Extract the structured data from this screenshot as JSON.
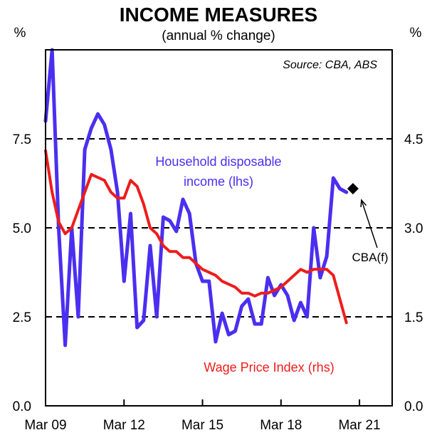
{
  "chart_data": {
    "type": "line",
    "title": "INCOME MEASURES",
    "subtitle": "(annual % change)",
    "source": "Source: CBA, ABS",
    "left_axis": {
      "unit_label": "%",
      "ylim": [
        0,
        10
      ],
      "ticks": [
        "0.0",
        "2.5",
        "5.0",
        "7.5"
      ],
      "tick_values": [
        0,
        2.5,
        5,
        7.5
      ]
    },
    "right_axis": {
      "unit_label": "%",
      "ylim": [
        0,
        6
      ],
      "ticks": [
        "0.0",
        "1.5",
        "3.0",
        "4.5"
      ],
      "tick_values": [
        0,
        1.5,
        3,
        4.5
      ]
    },
    "x_axis": {
      "xlim": [
        2009.0,
        2022.25
      ],
      "ticks": [
        "Mar 09",
        "Mar 12",
        "Mar 15",
        "Mar 18",
        "Mar 21"
      ],
      "tick_values": [
        2009.0,
        2012.0,
        2015.0,
        2018.0,
        2021.0
      ]
    },
    "gridlines": [
      2.5,
      5.0,
      7.5
    ],
    "series": [
      {
        "name": "Household disposable income (lhs)",
        "label_lines": [
          "Household disposable",
          "income (lhs)"
        ],
        "axis": "left",
        "color": "#4a2ff0",
        "x": [
          2009.0,
          2009.25,
          2009.5,
          2009.75,
          2010.0,
          2010.25,
          2010.5,
          2010.75,
          2011.0,
          2011.25,
          2011.5,
          2011.75,
          2012.0,
          2012.25,
          2012.5,
          2012.75,
          2013.0,
          2013.25,
          2013.5,
          2013.75,
          2014.0,
          2014.25,
          2014.5,
          2014.75,
          2015.0,
          2015.25,
          2015.5,
          2015.75,
          2016.0,
          2016.25,
          2016.5,
          2016.75,
          2017.0,
          2017.25,
          2017.5,
          2017.75,
          2018.0,
          2018.25,
          2018.5,
          2018.75,
          2019.0,
          2019.25,
          2019.5,
          2019.75,
          2020.0,
          2020.25,
          2020.5,
          2020.75,
          2021.0
        ],
        "values": [
          8.0,
          10.0,
          5.0,
          1.7,
          5.0,
          2.5,
          7.2,
          7.8,
          8.2,
          7.9,
          7.2,
          6.0,
          3.5,
          5.4,
          2.2,
          2.4,
          4.5,
          2.5,
          5.3,
          5.2,
          4.9,
          5.8,
          5.4,
          4.0,
          3.5,
          3.5,
          1.8,
          2.6,
          2.0,
          2.1,
          2.8,
          3.0,
          2.3,
          2.3,
          3.6,
          3.1,
          3.4,
          3.1,
          2.4,
          2.9,
          2.5,
          5.0,
          3.6,
          4.2,
          6.4,
          6.1,
          6.0,
          null,
          null
        ]
      },
      {
        "name": "Wage Price Index (rhs)",
        "axis": "right",
        "color": "#ee1c1c",
        "x": [
          2009.0,
          2009.25,
          2009.5,
          2009.75,
          2010.0,
          2010.25,
          2010.5,
          2010.75,
          2011.0,
          2011.25,
          2011.5,
          2011.75,
          2012.0,
          2012.25,
          2012.5,
          2012.75,
          2013.0,
          2013.25,
          2013.5,
          2013.75,
          2014.0,
          2014.25,
          2014.5,
          2014.75,
          2015.0,
          2015.25,
          2015.5,
          2015.75,
          2016.0,
          2016.25,
          2016.5,
          2016.75,
          2017.0,
          2017.25,
          2017.5,
          2017.75,
          2018.0,
          2018.25,
          2018.5,
          2018.75,
          2019.0,
          2019.25,
          2019.5,
          2019.75,
          2020.0,
          2020.25,
          2020.5,
          2020.75,
          2021.0
        ],
        "values": [
          4.3,
          3.6,
          3.1,
          2.9,
          3.0,
          3.3,
          3.6,
          3.9,
          3.85,
          3.8,
          3.6,
          3.5,
          3.5,
          3.8,
          3.7,
          3.4,
          3.0,
          2.9,
          2.7,
          2.6,
          2.6,
          2.5,
          2.5,
          2.4,
          2.3,
          2.25,
          2.2,
          2.1,
          2.05,
          2.0,
          1.9,
          1.9,
          1.85,
          1.9,
          1.9,
          1.95,
          2.0,
          2.1,
          2.2,
          2.3,
          2.25,
          2.3,
          2.3,
          2.3,
          2.2,
          1.8,
          1.4,
          null,
          null
        ]
      }
    ],
    "annotations": [
      {
        "label": "Wage Price Index (rhs)",
        "color": "#ee1c1c"
      },
      {
        "label": "CBA(f)",
        "marker": "diamond",
        "x": 2020.75,
        "y": 6.1,
        "axis": "left"
      }
    ]
  }
}
